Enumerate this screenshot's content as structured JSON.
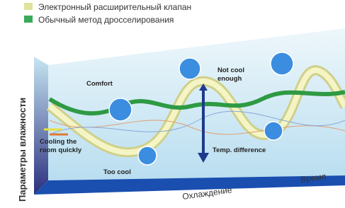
{
  "legend": [
    {
      "label": "Электронный расширительный клапан"
    },
    {
      "label": "Обычный метод дросселирования"
    }
  ],
  "axes": {
    "y_label": "Параметры влажности",
    "x_label": "Охлаждение",
    "x_end_label": "Время"
  },
  "annotations": {
    "comfort": "Comfort",
    "not_cool_enough": [
      "Not cool",
      "enough"
    ],
    "temp_difference": "Temp. difference",
    "too_cool": "Too cool",
    "cooling_quickly": [
      "Cooling the",
      "room quickly"
    ]
  }
}
